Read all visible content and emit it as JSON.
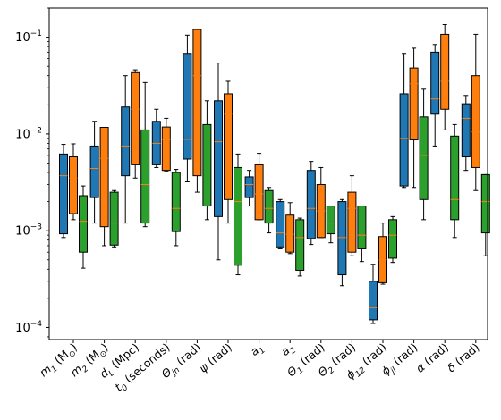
{
  "chart_data": {
    "type": "box",
    "y_scale": "log",
    "ylim": [
      7.5e-05,
      0.2
    ],
    "y_ticks": [
      {
        "value": 0.0001,
        "base": "10",
        "exp": "−4"
      },
      {
        "value": 0.001,
        "base": "10",
        "exp": "−3"
      },
      {
        "value": 0.01,
        "base": "10",
        "exp": "−2"
      },
      {
        "value": 0.1,
        "base": "10",
        "exp": "−1"
      }
    ],
    "categories": [
      {
        "main": "m",
        "sub": "1",
        "tail": " (M",
        "unit_sub": "⊙",
        "end": ")"
      },
      {
        "main": "m",
        "sub": "2",
        "tail": " (M",
        "unit_sub": "⊙",
        "end": ")"
      },
      {
        "main": "d",
        "sub": "L",
        "tail": " (Mpc)"
      },
      {
        "main": "t",
        "sub": "0",
        "tail": " (seconds)"
      },
      {
        "main": "Θ",
        "sub": "jn",
        "tail": " (rad)"
      },
      {
        "main": "ψ",
        "sub": "",
        "tail": " (rad)"
      },
      {
        "main": "a",
        "sub": "1",
        "tail": ""
      },
      {
        "main": "a",
        "sub": "2",
        "tail": ""
      },
      {
        "main": "Θ",
        "sub": "1",
        "tail": " (rad)"
      },
      {
        "main": "Θ",
        "sub": "2",
        "tail": " (rad)"
      },
      {
        "main": "ϕ",
        "sub": "12",
        "tail": " (rad)"
      },
      {
        "main": "ϕ",
        "sub": "jl",
        "tail": " (rad)"
      },
      {
        "main": "α",
        "sub": "",
        "tail": " (rad)"
      },
      {
        "main": "δ",
        "sub": "",
        "tail": " (rad)"
      }
    ],
    "colors": [
      "#1f77b4",
      "#ff7f0e",
      "#2ca02c"
    ],
    "median_color": "#ff7f0e",
    "series": [
      {
        "boxes": [
          {
            "whislo": 0.00085,
            "q1": 0.00093,
            "med": 0.0037,
            "q3": 0.0062,
            "whishi": 0.0078
          },
          {
            "whislo": 0.0012,
            "q1": 0.0022,
            "med": 0.0044,
            "q3": 0.0075,
            "whishi": 0.0135
          },
          {
            "whislo": 0.0012,
            "q1": 0.0037,
            "med": 0.0075,
            "q3": 0.019,
            "whishi": 0.04
          },
          {
            "whislo": 0.0045,
            "q1": 0.0048,
            "med": 0.008,
            "q3": 0.0135,
            "whishi": 0.018
          },
          {
            "whislo": 0.0032,
            "q1": 0.0055,
            "med": 0.0088,
            "q3": 0.068,
            "whishi": 0.105
          },
          {
            "whislo": 0.0005,
            "q1": 0.0014,
            "med": 0.0083,
            "q3": 0.022,
            "whishi": 0.054
          },
          {
            "whislo": 0.0018,
            "q1": 0.0022,
            "med": 0.003,
            "q3": 0.0036,
            "whishi": 0.0042
          },
          {
            "whislo": 0.00065,
            "q1": 0.00068,
            "med": 0.00095,
            "q3": 0.002,
            "whishi": 0.0021
          },
          {
            "whislo": 0.00072,
            "q1": 0.00083,
            "med": 0.0017,
            "q3": 0.0042,
            "whishi": 0.0052
          },
          {
            "whislo": 0.00027,
            "q1": 0.00035,
            "med": 0.00085,
            "q3": 0.002,
            "whishi": 0.0021
          },
          {
            "whislo": 0.00011,
            "q1": 0.00012,
            "med": 0.00016,
            "q3": 0.0003,
            "whishi": 0.00045
          },
          {
            "whislo": 0.0028,
            "q1": 0.0029,
            "med": 0.009,
            "q3": 0.026,
            "whishi": 0.068
          },
          {
            "whislo": 0.0075,
            "q1": 0.016,
            "med": 0.023,
            "q3": 0.07,
            "whishi": 0.084
          },
          {
            "whislo": 0.0042,
            "q1": 0.0058,
            "med": 0.0145,
            "q3": 0.0205,
            "whishi": 0.025
          }
        ]
      },
      {
        "boxes": [
          {
            "whislo": 0.0013,
            "q1": 0.0015,
            "med": 0.0035,
            "q3": 0.0058,
            "whishi": 0.0079
          },
          {
            "whislo": 0.0007,
            "q1": 0.0011,
            "med": 0.0056,
            "q3": 0.0117,
            "whishi": 0.0117
          },
          {
            "whislo": 0.0035,
            "q1": 0.0048,
            "med": 0.018,
            "q3": 0.043,
            "whishi": 0.046
          },
          {
            "whislo": 0.0041,
            "q1": 0.0042,
            "med": 0.0087,
            "q3": 0.0118,
            "whishi": 0.0145
          },
          {
            "whislo": 0.0025,
            "q1": 0.0037,
            "med": 0.04,
            "q3": 0.12,
            "whishi": 0.12
          },
          {
            "whislo": 0.0012,
            "q1": 0.0021,
            "med": 0.016,
            "q3": 0.026,
            "whishi": 0.035
          },
          {
            "whislo": 0.0013,
            "q1": 0.0013,
            "med": 0.0024,
            "q3": 0.0048,
            "whishi": 0.0063
          },
          {
            "whislo": 0.00058,
            "q1": 0.0006,
            "med": 0.00092,
            "q3": 0.00145,
            "whishi": 0.00195
          },
          {
            "whislo": 0.00085,
            "q1": 0.00085,
            "med": 0.0016,
            "q3": 0.003,
            "whishi": 0.0045
          },
          {
            "whislo": 0.00055,
            "q1": 0.0006,
            "med": 0.0017,
            "q3": 0.0025,
            "whishi": 0.0037
          },
          {
            "whislo": 0.00028,
            "q1": 0.00029,
            "med": 0.0005,
            "q3": 0.00087,
            "whishi": 0.0012
          },
          {
            "whislo": 0.0028,
            "q1": 0.0087,
            "med": 0.033,
            "q3": 0.048,
            "whishi": 0.077
          },
          {
            "whislo": 0.011,
            "q1": 0.018,
            "med": 0.035,
            "q3": 0.107,
            "whishi": 0.135
          },
          {
            "whislo": 0.0026,
            "q1": 0.0045,
            "med": 0.0105,
            "q3": 0.04,
            "whishi": 0.107
          }
        ]
      },
      {
        "boxes": [
          {
            "whislo": 0.00041,
            "q1": 0.0006,
            "med": 0.00125,
            "q3": 0.0023,
            "whishi": 0.0029
          },
          {
            "whislo": 0.00068,
            "q1": 0.00071,
            "med": 0.0012,
            "q3": 0.0025,
            "whishi": 0.0026
          },
          {
            "whislo": 0.0011,
            "q1": 0.0012,
            "med": 0.003,
            "q3": 0.011,
            "whishi": 0.034
          },
          {
            "whislo": 0.0007,
            "q1": 0.00098,
            "med": 0.0017,
            "q3": 0.004,
            "whishi": 0.0043
          },
          {
            "whislo": 0.0013,
            "q1": 0.0018,
            "med": 0.0027,
            "q3": 0.0125,
            "whishi": 0.022
          },
          {
            "whislo": 0.00035,
            "q1": 0.00044,
            "med": 0.002,
            "q3": 0.0045,
            "whishi": 0.0062
          },
          {
            "whislo": 0.00095,
            "q1": 0.0012,
            "med": 0.0017,
            "q3": 0.0026,
            "whishi": 0.0028
          },
          {
            "whislo": 0.00034,
            "q1": 0.00039,
            "med": 0.00085,
            "q3": 0.0013,
            "whishi": 0.00135
          },
          {
            "whislo": 0.00075,
            "q1": 0.00093,
            "med": 0.0012,
            "q3": 0.0018,
            "whishi": 0.0018
          },
          {
            "whislo": 0.00048,
            "q1": 0.00065,
            "med": 0.0009,
            "q3": 0.0018,
            "whishi": 0.0018
          },
          {
            "whislo": 0.00047,
            "q1": 0.00052,
            "med": 0.0009,
            "q3": 0.0013,
            "whishi": 0.0014
          },
          {
            "whislo": 0.0013,
            "q1": 0.0021,
            "med": 0.006,
            "q3": 0.015,
            "whishi": 0.029
          },
          {
            "whislo": 0.00085,
            "q1": 0.0013,
            "med": 0.0021,
            "q3": 0.0095,
            "whishi": 0.0125
          },
          {
            "whislo": 0.00055,
            "q1": 0.00095,
            "med": 0.002,
            "q3": 0.0038,
            "whishi": 0.0038
          }
        ]
      }
    ],
    "grid": false,
    "legend": "none"
  }
}
